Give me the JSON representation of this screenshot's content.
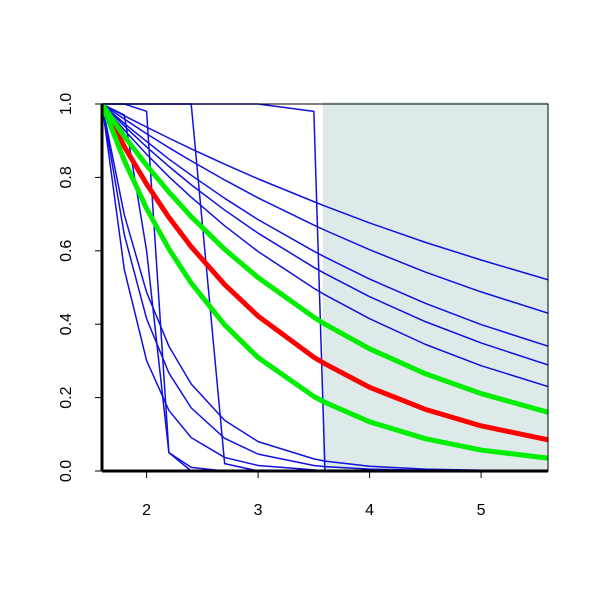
{
  "chart_data": {
    "type": "line",
    "x": [
      1.6,
      1.8,
      2.0,
      2.2,
      2.4,
      2.7,
      3.0,
      3.5,
      3.6,
      4.0,
      4.5,
      5.0,
      5.6
    ],
    "xlim": [
      1.6,
      5.6
    ],
    "xticks": [
      2,
      3,
      4,
      5
    ],
    "ylim": [
      0,
      1
    ],
    "yticks": [
      {
        "value": 0,
        "label": "0.0"
      },
      {
        "value": 0.2,
        "label": "0.2"
      },
      {
        "value": 0.4,
        "label": "0.4"
      },
      {
        "value": 0.6,
        "label": "0.6"
      },
      {
        "value": 0.8,
        "label": "0.8"
      },
      {
        "value": 1,
        "label": "1.0"
      }
    ],
    "shaded_region": {
      "x": [
        3.58,
        5.6
      ],
      "color": "#deeaea"
    },
    "series": [
      {
        "color": "#1010e0",
        "linewidth": 1.5,
        "values": [
          1,
          0.968,
          0.937,
          0.907,
          0.878,
          0.836,
          0.796,
          0.734,
          0.722,
          0.676,
          0.623,
          0.575,
          0.521
        ]
      },
      {
        "color": "#1010e0",
        "linewidth": 1.5,
        "values": [
          1,
          0.959,
          0.919,
          0.881,
          0.845,
          0.793,
          0.744,
          0.67,
          0.656,
          0.603,
          0.542,
          0.488,
          0.43
        ]
      },
      {
        "color": "#1010e0",
        "linewidth": 1.5,
        "values": [
          1,
          0.947,
          0.898,
          0.85,
          0.806,
          0.743,
          0.685,
          0.599,
          0.583,
          0.523,
          0.457,
          0.399,
          0.34
        ]
      },
      {
        "color": "#1010e0",
        "linewidth": 1.5,
        "values": [
          1,
          0.94,
          0.883,
          0.83,
          0.78,
          0.711,
          0.648,
          0.555,
          0.538,
          0.475,
          0.407,
          0.349,
          0.289
        ]
      },
      {
        "color": "#1010e0",
        "linewidth": 1.5,
        "values": [
          1,
          0.929,
          0.863,
          0.802,
          0.746,
          0.668,
          0.598,
          0.498,
          0.48,
          0.415,
          0.345,
          0.287,
          0.23
        ]
      },
      {
        "color": "#1010e0",
        "linewidth": 1.5,
        "values": [
          1,
          0.549,
          0.301,
          0.165,
          0.091,
          0.037,
          0.015,
          0.003,
          0,
          0,
          0,
          0,
          0
        ]
      },
      {
        "color": "#1010e0",
        "linewidth": 1.5,
        "values": [
          1,
          0.698,
          0.487,
          0.34,
          0.237,
          0.138,
          0.08,
          0.033,
          0.027,
          0.013,
          0.005,
          0.002,
          0.001
        ]
      },
      {
        "color": "#1010e0",
        "linewidth": 1.5,
        "values": [
          1,
          0.644,
          0.415,
          0.267,
          0.172,
          0.089,
          0.046,
          0.015,
          0.012,
          0.005,
          0.002,
          0.001,
          0
        ]
      },
      {
        "color": "#1010e0",
        "linewidth": 1.5,
        "values": [
          1,
          1,
          0.98,
          0.05,
          0.01,
          0,
          0,
          0,
          0,
          0,
          0,
          0,
          0
        ]
      },
      {
        "color": "#1010e0",
        "linewidth": 1.5,
        "values": [
          1,
          0.97,
          0.6,
          0.05,
          0,
          0,
          0,
          0,
          0,
          0,
          0,
          0,
          0
        ]
      },
      {
        "color": "#1010e0",
        "linewidth": 1.5,
        "values": [
          1,
          1,
          1,
          1,
          1,
          0.02,
          0,
          0,
          0,
          0,
          0,
          0,
          0
        ]
      },
      {
        "color": "#1010e0",
        "linewidth": 1.5,
        "values": [
          1,
          1,
          1,
          1,
          1,
          1,
          1,
          0.98,
          0,
          0,
          0,
          0,
          0
        ]
      },
      {
        "color": "#ff0000",
        "linewidth": 5,
        "values": [
          1,
          0.884,
          0.782,
          0.691,
          0.611,
          0.508,
          0.422,
          0.31,
          0.292,
          0.228,
          0.168,
          0.123,
          0.085
        ]
      },
      {
        "color": "#00ee00",
        "linewidth": 5,
        "values": [
          1,
          0.912,
          0.833,
          0.76,
          0.693,
          0.604,
          0.527,
          0.419,
          0.4,
          0.333,
          0.265,
          0.211,
          0.16
        ]
      },
      {
        "color": "#00ee00",
        "linewidth": 5,
        "values": [
          1,
          0.846,
          0.715,
          0.605,
          0.512,
          0.398,
          0.309,
          0.203,
          0.187,
          0.134,
          0.088,
          0.057,
          0.035
        ]
      }
    ]
  }
}
